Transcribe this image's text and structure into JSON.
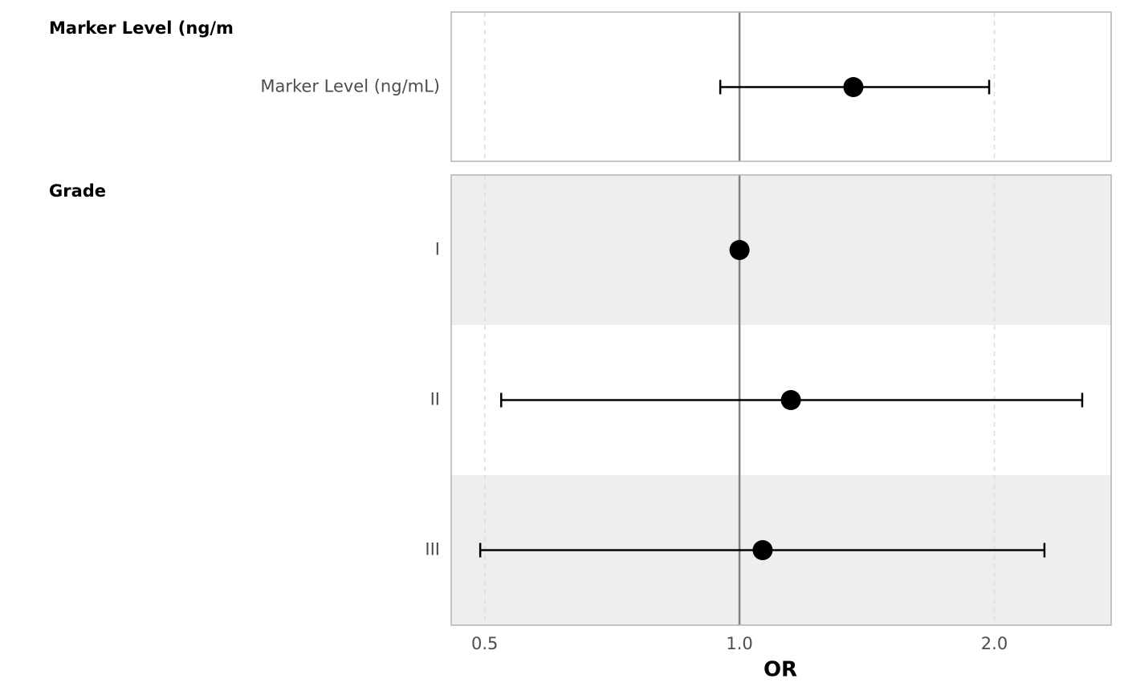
{
  "chart_data": {
    "type": "forest",
    "xlabel": "OR",
    "log_x": true,
    "xlim": [
      0.4565,
      2.748
    ],
    "xticks": [
      0.5,
      {
        "value": 1,
        "label": "1.0"
      },
      {
        "value": 2,
        "label": "2.0"
      }
    ],
    "reference": 1,
    "grid": true,
    "color": "#000000",
    "groups": [
      {
        "title": "Marker Level (ng/m",
        "categories": [
          "Marker Level (ng/mL)"
        ],
        "values": [
          1.363
        ],
        "lower": [
          0.949
        ],
        "upper": [
          1.972
        ]
      },
      {
        "title": "Grade",
        "categories": [
          "I",
          "II",
          "III"
        ],
        "values": [
          1,
          1.15,
          1.065
        ],
        "lower": [
          null,
          0.523,
          0.494
        ],
        "upper": [
          null,
          2.54,
          2.292
        ]
      }
    ]
  }
}
